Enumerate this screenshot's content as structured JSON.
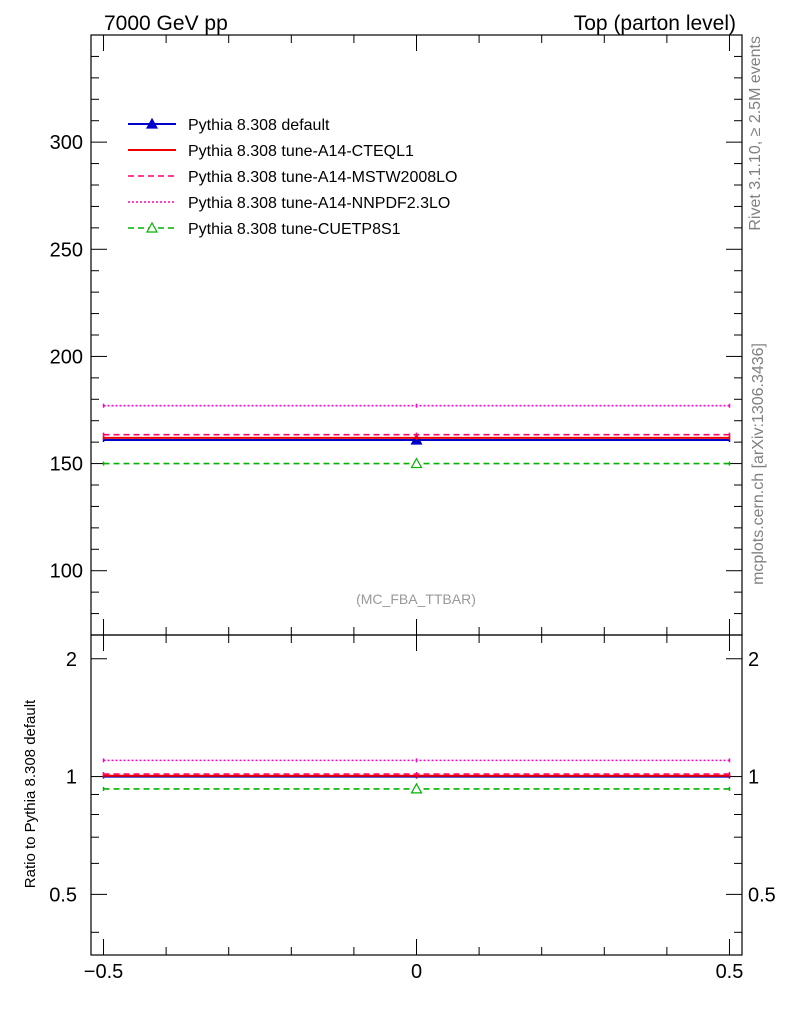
{
  "header": {
    "left": "7000 GeV pp",
    "right": "Top (parton level)"
  },
  "side": {
    "rivet": "Rivet 3.1.10, ≥ 2.5M events",
    "source": "mcplots.cern.ch [arXiv:1306.3436]"
  },
  "watermark": "(MC_FBA_TTBAR)",
  "ratio_ylabel": "Ratio to Pythia 8.308 default",
  "colors": {
    "default": "#0000cc",
    "cteql1": "#ee0000",
    "mstw": "#ff0066",
    "nnpdf": "#ff00cc",
    "cuetp8s1": "#00b400",
    "side_text": "#808080"
  },
  "chart_data": [
    {
      "panel": "main",
      "type": "line",
      "x": [
        -0.5,
        0,
        0.5
      ],
      "xlim": [
        -0.52,
        0.52
      ],
      "ylim": [
        70,
        350
      ],
      "yticks": [
        100,
        150,
        200,
        250,
        300
      ],
      "ytick_labels": [
        "100",
        "150",
        "200",
        "250",
        "300"
      ],
      "grid": false,
      "legend_position": "top-left",
      "series": [
        {
          "name": "Pythia 8.308 default",
          "values": [
            161,
            161,
            161
          ],
          "style": "solid",
          "marker": "filled-triangle",
          "color_key": "default"
        },
        {
          "name": "Pythia 8.308 tune-A14-CTEQL1",
          "values": [
            162,
            162,
            162
          ],
          "style": "solid",
          "marker": "none",
          "color_key": "cteql1"
        },
        {
          "name": "Pythia 8.308 tune-A14-MSTW2008LO",
          "values": [
            163.5,
            163.5,
            163.5
          ],
          "style": "dashed",
          "marker": "none",
          "color_key": "mstw"
        },
        {
          "name": "Pythia 8.308 tune-A14-NNPDF2.3LO",
          "values": [
            177,
            177,
            177
          ],
          "style": "dotted",
          "marker": "none",
          "color_key": "nnpdf"
        },
        {
          "name": "Pythia 8.308 tune-CUETP8S1",
          "values": [
            150,
            150,
            150
          ],
          "style": "dashed",
          "marker": "open-triangle",
          "color_key": "cuetp8s1"
        }
      ]
    },
    {
      "panel": "ratio",
      "type": "line",
      "x": [
        -0.5,
        0,
        0.5
      ],
      "xlim": [
        -0.52,
        0.52
      ],
      "xticks": [
        -0.5,
        0,
        0.5
      ],
      "xtick_labels": [
        "−0.5",
        "0",
        "0.5"
      ],
      "ylim": [
        0.35,
        2.3
      ],
      "yticks": [
        0.5,
        1,
        2
      ],
      "ytick_labels": [
        "0.5",
        "1",
        "2"
      ],
      "ylabel": "Ratio to Pythia 8.308 default",
      "grid": false,
      "series": [
        {
          "name": "Pythia 8.308 default",
          "values": [
            1.0,
            1.0,
            1.0
          ],
          "style": "solid",
          "marker": "none",
          "color_key": "default"
        },
        {
          "name": "Pythia 8.308 tune-A14-CTEQL1",
          "values": [
            1.005,
            1.005,
            1.005
          ],
          "style": "solid",
          "marker": "none",
          "color_key": "cteql1"
        },
        {
          "name": "Pythia 8.308 tune-A14-MSTW2008LO",
          "values": [
            1.015,
            1.015,
            1.015
          ],
          "style": "dashed",
          "marker": "none",
          "color_key": "mstw"
        },
        {
          "name": "Pythia 8.308 tune-A14-NNPDF2.3LO",
          "values": [
            1.1,
            1.1,
            1.1
          ],
          "style": "dotted",
          "marker": "none",
          "color_key": "nnpdf"
        },
        {
          "name": "Pythia 8.308 tune-CUETP8S1",
          "values": [
            0.93,
            0.93,
            0.93
          ],
          "style": "dashed",
          "marker": "open-triangle",
          "color_key": "cuetp8s1"
        }
      ]
    }
  ]
}
